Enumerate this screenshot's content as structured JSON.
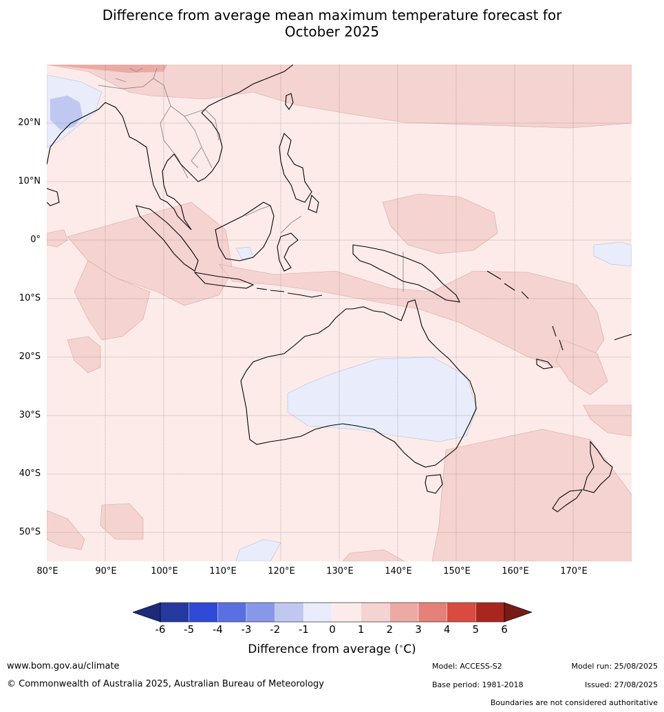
{
  "title_line1": "Difference from average mean maximum temperature forecast for",
  "title_line2": "October 2025",
  "lat_labels": [
    "20°N",
    "10°N",
    "0°",
    "10°S",
    "20°S",
    "30°S",
    "40°S",
    "50°S"
  ],
  "lon_labels": [
    "80°E",
    "90°E",
    "100°E",
    "110°E",
    "120°E",
    "130°E",
    "140°E",
    "150°E",
    "160°E",
    "170°E"
  ],
  "colorbar": {
    "title": "Difference from average (",
    "unit_symbol": "∘",
    "unit": "C)",
    "ticks": [
      "-6",
      "-5",
      "-4",
      "-3",
      "-2",
      "-1",
      "0",
      "1",
      "2",
      "3",
      "4",
      "5",
      "6"
    ],
    "colors": [
      "#26399f",
      "#2f4ad6",
      "#5a70e0",
      "#8898e8",
      "#c0c8f2",
      "#e8ecfb",
      "#fcebe9",
      "#f5d3d0",
      "#ecaaa5",
      "#e6817a",
      "#d94b40",
      "#a8261e"
    ],
    "under_color": "#1c2a78",
    "over_color": "#781a16"
  },
  "footer": {
    "url": "www.bom.gov.au/climate",
    "copyright": "© Commonwealth of Australia 2025, Australian Bureau of Meteorology",
    "model": "Model: ACCESS-S2",
    "base_period": "Base period: 1981-2018",
    "model_run": "Model run: 25/08/2025",
    "issued": "Issued: 27/08/2025",
    "disclaimer": "Boundaries are not considered authoritative"
  },
  "map": {
    "background_color": "#fcebe9",
    "warm_color": "#f5d3d0",
    "warmer_color": "#ecaaa5",
    "cool_color": "#e8ecfb",
    "cooler_color": "#c0c8f2",
    "coast_color": "#000000",
    "border_color": "#888888",
    "grid_color": "#777777"
  }
}
